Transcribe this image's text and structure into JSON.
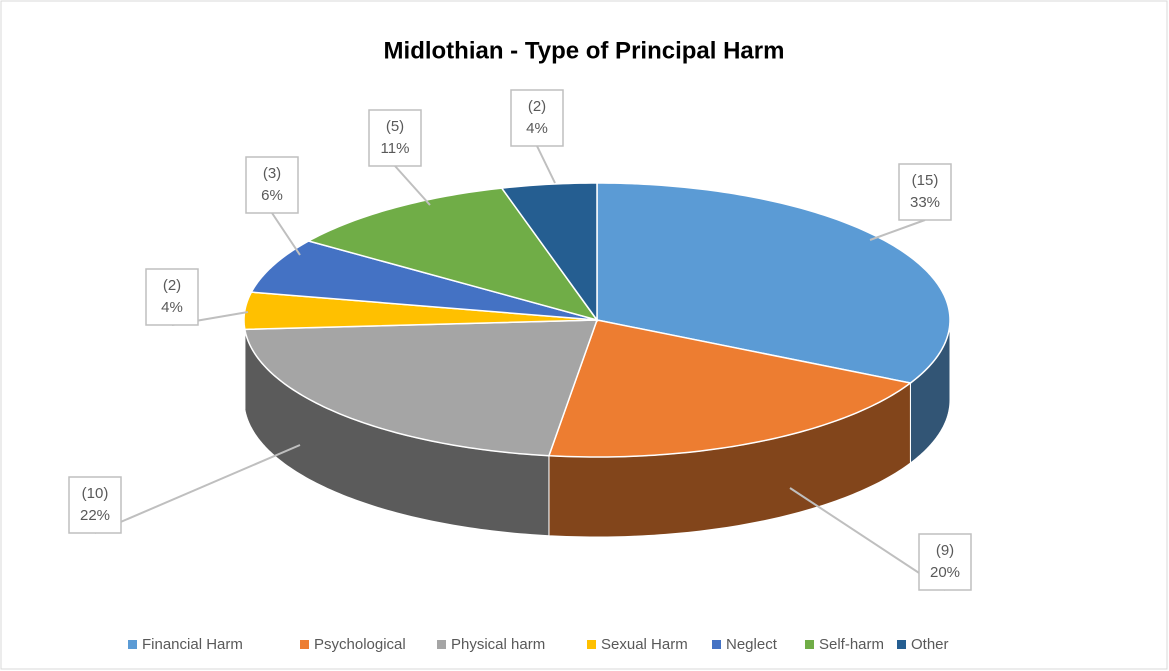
{
  "chart_data": {
    "type": "pie3d",
    "title": "Midlothian - Type of Principal Harm",
    "categories": [
      "Financial Harm",
      "Psychological",
      "Physical harm",
      "Sexual Harm",
      "Neglect",
      "Self-harm",
      "Other"
    ],
    "values": [
      15,
      9,
      10,
      2,
      3,
      5,
      2
    ],
    "value_labels": [
      "(15)",
      "(9)",
      "(10)",
      "(2)",
      "(3)",
      "(5)",
      "(2)"
    ],
    "percents": [
      33,
      20,
      22,
      4,
      6,
      11,
      4
    ],
    "percent_labels": [
      "33%",
      "20%",
      "22%",
      "4%",
      "6%",
      "11%",
      "4%"
    ],
    "colors": [
      "#5b9bd5",
      "#ed7d31",
      "#a5a5a5",
      "#ffc000",
      "#4472c4",
      "#70ad47",
      "#255e91"
    ],
    "legend": "bottom"
  }
}
